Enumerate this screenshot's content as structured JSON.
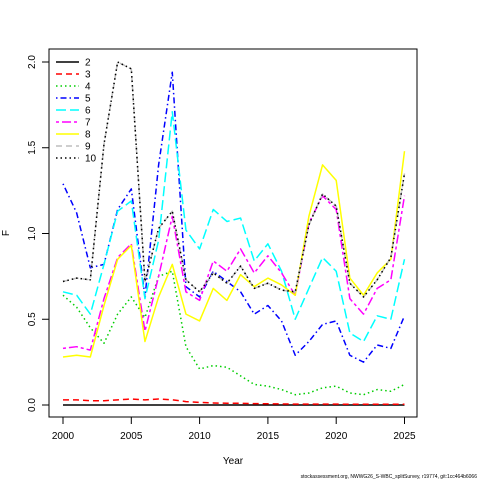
{
  "chart_data": {
    "type": "line",
    "xlabel": "Year",
    "ylabel": "F",
    "xlim": [
      2000,
      2025
    ],
    "ylim": [
      0,
      2.0
    ],
    "xticks": [
      2000,
      2005,
      2010,
      2015,
      2020,
      2025
    ],
    "yticks": [
      0.0,
      0.5,
      1.0,
      1.5,
      2.0
    ],
    "ytick_labels": [
      "0.0",
      "0.5",
      "1.0",
      "1.5",
      "2.0"
    ],
    "grid": false,
    "legend_position": "top-left",
    "x": [
      2000,
      2001,
      2002,
      2003,
      2004,
      2005,
      2006,
      2007,
      2008,
      2009,
      2010,
      2011,
      2012,
      2013,
      2014,
      2015,
      2016,
      2017,
      2018,
      2019,
      2020,
      2021,
      2022,
      2023,
      2024,
      2025
    ],
    "series": [
      {
        "name": "2",
        "color": "#000000",
        "dash": "solid",
        "values": [
          0,
          0,
          0,
          0,
          0,
          0,
          0,
          0,
          0,
          0,
          0,
          0,
          0,
          0,
          0,
          0,
          0,
          0,
          0,
          0,
          0,
          0,
          0,
          0,
          0,
          0
        ]
      },
      {
        "name": "3",
        "color": "#ff0000",
        "dash": "dashed",
        "values": [
          0.03,
          0.03,
          0.025,
          0.025,
          0.03,
          0.035,
          0.03,
          0.035,
          0.03,
          0.02,
          0.015,
          0.012,
          0.01,
          0.01,
          0.008,
          0.007,
          0.006,
          0.005,
          0.005,
          0.005,
          0.005,
          0.004,
          0.004,
          0.004,
          0.004,
          0.004
        ]
      },
      {
        "name": "4",
        "color": "#00cd00",
        "dash": "dotted",
        "values": [
          0.64,
          0.57,
          0.45,
          0.36,
          0.53,
          0.63,
          0.51,
          0.75,
          0.78,
          0.34,
          0.21,
          0.23,
          0.22,
          0.17,
          0.12,
          0.11,
          0.09,
          0.06,
          0.07,
          0.1,
          0.11,
          0.07,
          0.06,
          0.09,
          0.08,
          0.12
        ]
      },
      {
        "name": "5",
        "color": "#0000ff",
        "dash": "dashdot",
        "values": [
          1.29,
          1.12,
          0.8,
          0.82,
          1.14,
          1.26,
          0.63,
          1.4,
          1.94,
          0.69,
          0.63,
          0.78,
          0.72,
          0.66,
          0.53,
          0.58,
          0.49,
          0.29,
          0.37,
          0.47,
          0.49,
          0.29,
          0.25,
          0.35,
          0.33,
          0.52
        ]
      },
      {
        "name": "6",
        "color": "#00ffff",
        "dash": "longdash",
        "values": [
          0.66,
          0.64,
          0.53,
          0.82,
          1.13,
          1.19,
          0.62,
          0.96,
          1.71,
          1.02,
          0.91,
          1.14,
          1.07,
          1.09,
          0.84,
          0.94,
          0.78,
          0.5,
          0.68,
          0.86,
          0.78,
          0.42,
          0.37,
          0.52,
          0.5,
          0.85
        ]
      },
      {
        "name": "7",
        "color": "#ff00ff",
        "dash": "twodash",
        "values": [
          0.33,
          0.34,
          0.32,
          0.62,
          0.86,
          0.94,
          0.43,
          0.75,
          1.1,
          0.66,
          0.61,
          0.84,
          0.78,
          0.91,
          0.77,
          0.87,
          0.77,
          0.64,
          1.06,
          1.22,
          1.14,
          0.62,
          0.53,
          0.68,
          0.73,
          1.22
        ]
      },
      {
        "name": "8",
        "color": "#ffff00",
        "dash": "solid",
        "values": [
          0.28,
          0.29,
          0.28,
          0.58,
          0.85,
          0.93,
          0.37,
          0.63,
          0.82,
          0.53,
          0.49,
          0.68,
          0.61,
          0.76,
          0.69,
          0.74,
          0.7,
          0.64,
          1.1,
          1.4,
          1.31,
          0.74,
          0.64,
          0.77,
          0.85,
          1.48
        ]
      },
      {
        "name": "9",
        "color": "#bebebe",
        "dash": "dashed",
        "values": [
          0.72,
          0.74,
          0.73,
          1.52,
          2.0,
          1.96,
          0.72,
          1.03,
          1.13,
          0.73,
          0.66,
          0.77,
          0.71,
          0.81,
          0.68,
          0.71,
          0.67,
          0.66,
          1.05,
          1.23,
          1.16,
          0.71,
          0.63,
          0.73,
          0.86,
          1.35
        ]
      },
      {
        "name": "10",
        "color": "#000000",
        "dash": "dotted",
        "values": [
          0.72,
          0.74,
          0.73,
          1.52,
          2.0,
          1.96,
          0.72,
          1.03,
          1.13,
          0.73,
          0.66,
          0.77,
          0.71,
          0.81,
          0.68,
          0.71,
          0.67,
          0.66,
          1.05,
          1.23,
          1.16,
          0.71,
          0.63,
          0.73,
          0.86,
          1.35
        ]
      }
    ]
  },
  "footer": "stockassessment.org, NWWG26_S-WBC_splitSurvey, r19774, git:1cc464b6066"
}
